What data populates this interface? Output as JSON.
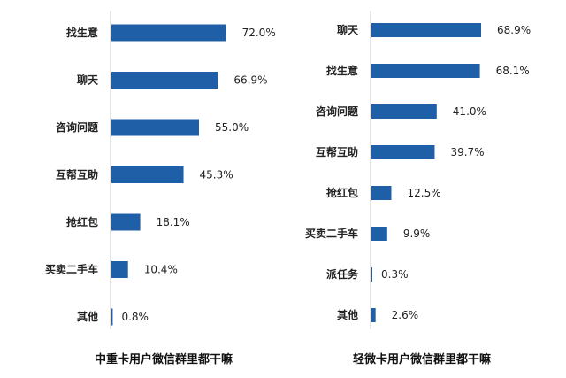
{
  "chart_data": [
    {
      "type": "bar",
      "orientation": "horizontal",
      "title": "中重卡用户微信群里都干嘛",
      "categories": [
        "找生意",
        "聊天",
        "咨询问题",
        "互帮互助",
        "抢红包",
        "买卖二手车",
        "其他"
      ],
      "values": [
        72.0,
        66.9,
        55.0,
        45.3,
        18.1,
        10.4,
        0.8
      ],
      "value_labels": [
        "72.0%",
        "66.9%",
        "55.0%",
        "45.3%",
        "18.1%",
        "10.4%",
        "0.8%"
      ],
      "unit": "%",
      "xlim": [
        0,
        100
      ],
      "grid": false,
      "color": "#1f5fa8"
    },
    {
      "type": "bar",
      "orientation": "horizontal",
      "title": "轻微卡用户微信群里都干嘛",
      "categories": [
        "聊天",
        "找生意",
        "咨询问题",
        "互帮互助",
        "抢红包",
        "买卖二手车",
        "派任务",
        "其他"
      ],
      "values": [
        68.9,
        68.1,
        41.0,
        39.7,
        12.5,
        9.9,
        0.3,
        2.6
      ],
      "value_labels": [
        "68.9%",
        "68.1%",
        "41.0%",
        "39.7%",
        "12.5%",
        "9.9%",
        "0.3%",
        "2.6%"
      ],
      "unit": "%",
      "xlim": [
        0,
        100
      ],
      "grid": false,
      "color": "#1f5fa8"
    }
  ]
}
